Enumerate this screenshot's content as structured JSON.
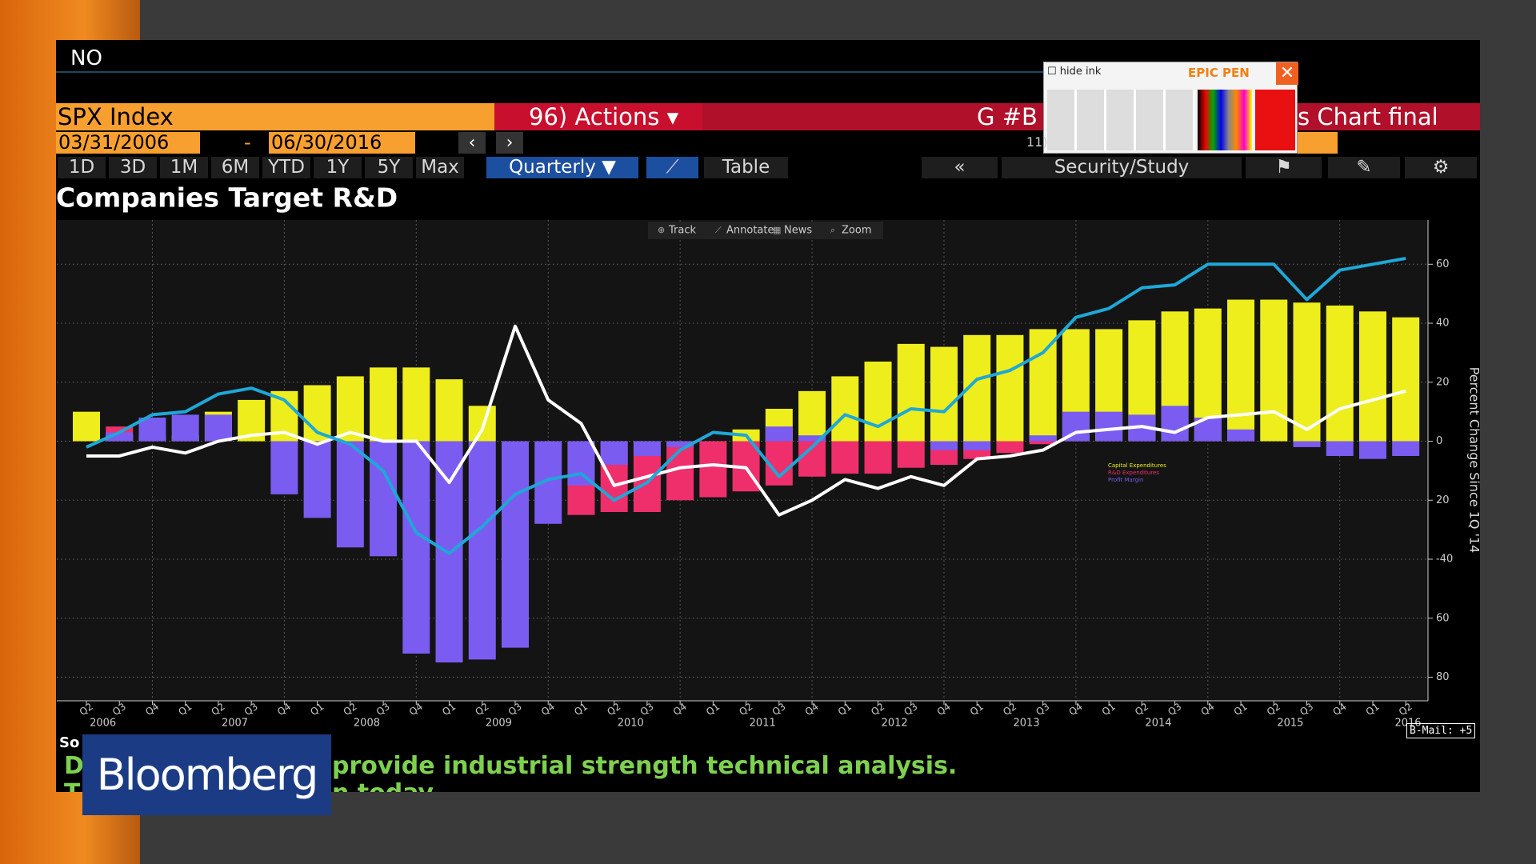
{
  "ui": {
    "command": "NO",
    "security": "SPX Index",
    "actions": "96) Actions",
    "g_field": "G #B",
    "chart_name": "s Chart final",
    "start_date": "03/31/2006",
    "date_sep": "-",
    "end_date": "06/30/2016",
    "periods": [
      "1D",
      "3D",
      "1M",
      "6M",
      "YTD",
      "1Y",
      "5Y",
      "Max"
    ],
    "frequency": "Quarterly",
    "table": "Table",
    "collapse": "«",
    "security_study": "Security/Study",
    "pen": {
      "hide": "hide ink",
      "name": "EPIC PEN",
      "slot": "11)"
    },
    "ticker": {
      "source": "So",
      "lead1": "D",
      "line1": "provide industrial strength technical analysis.",
      "lead2": "T",
      "line2": "n today"
    },
    "logo": "Bloomberg",
    "mail": "B-Mail: +5"
  },
  "chart_data": {
    "type": "bar",
    "title": "Companies Target R&D",
    "toolbar": [
      "Track",
      "Annotate",
      "News",
      "Zoom"
    ],
    "y_label": "Percent Change Since 1Q '14",
    "categories": [
      "Q2",
      "Q3",
      "Q4",
      "Q1",
      "Q2",
      "Q3",
      "Q4",
      "Q1",
      "Q2",
      "Q3",
      "Q4",
      "Q1",
      "Q2",
      "Q3",
      "Q4",
      "Q1",
      "Q2",
      "Q3",
      "Q4",
      "Q1",
      "Q2",
      "Q3",
      "Q4",
      "Q1",
      "Q2",
      "Q3",
      "Q4",
      "Q1",
      "Q2",
      "Q3",
      "Q4",
      "Q1",
      "Q2",
      "Q3",
      "Q4",
      "Q1",
      "Q2",
      "Q3",
      "Q4",
      "Q1",
      "Q2"
    ],
    "years": [
      "2006",
      "2007",
      "2008",
      "2009",
      "2010",
      "2011",
      "2012",
      "2013",
      "2014",
      "2015",
      "2016"
    ],
    "series": [
      {
        "name": "Capital Expenditures",
        "type": "bar",
        "color": "#eeee1c",
        "values": [
          10,
          2,
          2,
          2,
          10,
          14,
          17,
          19,
          22,
          25,
          25,
          21,
          12,
          0,
          0,
          0,
          0,
          0,
          0,
          0,
          4,
          11,
          17,
          22,
          27,
          33,
          32,
          36,
          36,
          38,
          38,
          38,
          41,
          44,
          45,
          48,
          48,
          47,
          46,
          44,
          42
        ]
      },
      {
        "name": "R&D Expenditures",
        "type": "bar",
        "color": "#ee2f6c",
        "values": [
          0,
          5,
          0,
          0,
          0,
          0,
          0,
          0,
          0,
          0,
          0,
          0,
          0,
          0,
          0,
          -25,
          -24,
          -24,
          -20,
          -19,
          -17,
          -15,
          -12,
          -11,
          -11,
          -9,
          -8,
          -6,
          -4,
          -1,
          0,
          0,
          0,
          0,
          0,
          0,
          0,
          0,
          0,
          0,
          0
        ]
      },
      {
        "name": "Profit Margin",
        "type": "bar",
        "color": "#7b5cf0",
        "values": [
          0,
          3,
          8,
          9,
          9,
          0,
          -18,
          -26,
          -36,
          -39,
          -72,
          -75,
          -74,
          -70,
          -28,
          -15,
          -8,
          -5,
          -2,
          0,
          0,
          5,
          2,
          0,
          0,
          0,
          -3,
          -3,
          0,
          2,
          10,
          10,
          9,
          12,
          8,
          4,
          0,
          -2,
          -5,
          -6,
          -5
        ]
      },
      {
        "type": "line",
        "color": "#ffffff",
        "values": [
          -5,
          -5,
          -2,
          -4,
          0,
          2,
          3,
          -1,
          3,
          0,
          0,
          -14,
          4,
          39,
          14,
          6,
          -15,
          -12,
          -9,
          -8,
          -9,
          -25,
          -20,
          -13,
          -16,
          -12,
          -15,
          -6,
          -5,
          -3,
          3,
          4,
          5,
          3,
          8,
          9,
          10,
          4,
          11,
          14,
          17
        ]
      },
      {
        "type": "line",
        "color": "#1ea8d8",
        "values": [
          -2,
          3,
          9,
          10,
          16,
          18,
          14,
          3,
          -1,
          -10,
          -31,
          -38,
          -29,
          -18,
          -13,
          -11,
          -20,
          -14,
          -3,
          3,
          2,
          -12,
          -2,
          9,
          5,
          11,
          10,
          21,
          24,
          30,
          42,
          45,
          52,
          53,
          60,
          60,
          60,
          48,
          58,
          60,
          62
        ]
      }
    ],
    "ylim": [
      -88,
      75
    ],
    "yticks": [
      60,
      40,
      20,
      0,
      {
        "value": -20,
        "label": "20"
      },
      -40,
      {
        "value": -60,
        "label": "60"
      },
      {
        "value": -80,
        "label": "80"
      }
    ],
    "grid": true
  }
}
